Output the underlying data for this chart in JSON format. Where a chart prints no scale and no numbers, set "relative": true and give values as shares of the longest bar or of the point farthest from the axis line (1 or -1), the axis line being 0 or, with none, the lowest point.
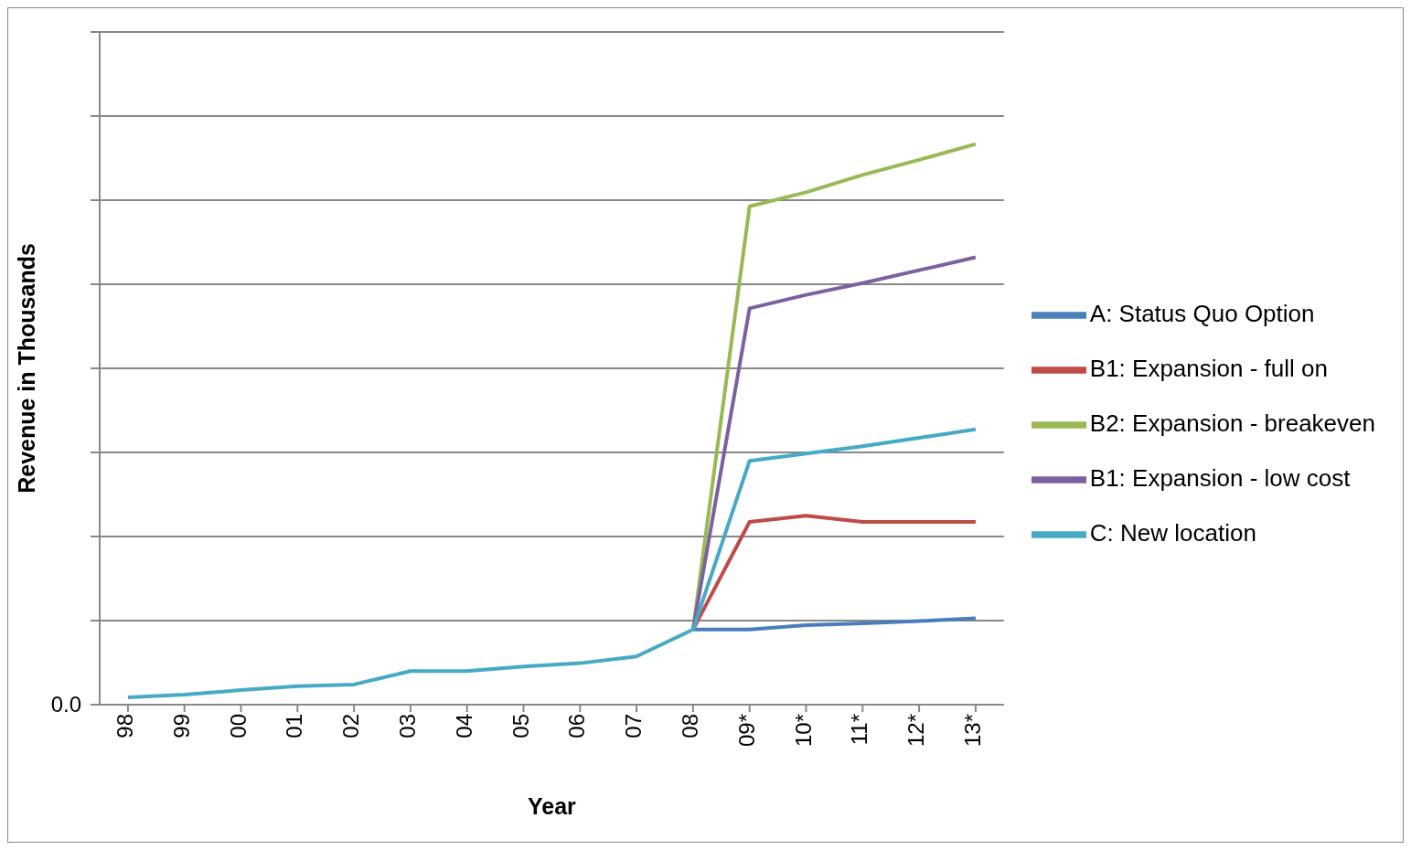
{
  "chart_data": {
    "type": "line",
    "relative": true,
    "xlabel": "Year",
    "ylabel": "Revenue in Thousands",
    "categories": [
      "98",
      "99",
      "00",
      "01",
      "02",
      "03",
      "04",
      "05",
      "06",
      "07",
      "08",
      "09*",
      "10*",
      "11*",
      "12*",
      "13*"
    ],
    "series": [
      {
        "name": "A: Status Quo Option",
        "color": "#4a7ebb",
        "values": [
          null,
          null,
          null,
          null,
          null,
          null,
          null,
          null,
          null,
          null,
          0.134,
          0.134,
          0.142,
          0.145,
          0.149,
          0.154
        ]
      },
      {
        "name": "B1: Expansion - full on",
        "color": "#be4b48",
        "values": [
          null,
          null,
          null,
          null,
          null,
          null,
          null,
          null,
          null,
          null,
          0.134,
          0.326,
          0.337,
          0.326,
          0.326,
          0.326
        ]
      },
      {
        "name": "B2: Expansion - breakeven",
        "color": "#98b954",
        "values": [
          null,
          null,
          null,
          null,
          null,
          null,
          null,
          null,
          null,
          null,
          0.134,
          0.889,
          0.914,
          0.945,
          0.972,
          1
        ]
      },
      {
        "name": "B1: Expansion - low cost",
        "color": "#7d60a0",
        "values": [
          null,
          null,
          null,
          null,
          null,
          null,
          null,
          null,
          null,
          null,
          0.134,
          0.707,
          0.731,
          0.752,
          0.775,
          0.798
        ]
      },
      {
        "name": "C: New location",
        "color": "#46aac5",
        "values": [
          0.013,
          0.018,
          0.026,
          0.033,
          0.036,
          0.06,
          0.06,
          0.068,
          0.074,
          0.086,
          0.134,
          0.435,
          0.448,
          0.461,
          0.476,
          0.491
        ]
      }
    ],
    "annotations": [
      "0.0"
    ],
    "grid": "y",
    "legend": "right",
    "marker": "none"
  }
}
